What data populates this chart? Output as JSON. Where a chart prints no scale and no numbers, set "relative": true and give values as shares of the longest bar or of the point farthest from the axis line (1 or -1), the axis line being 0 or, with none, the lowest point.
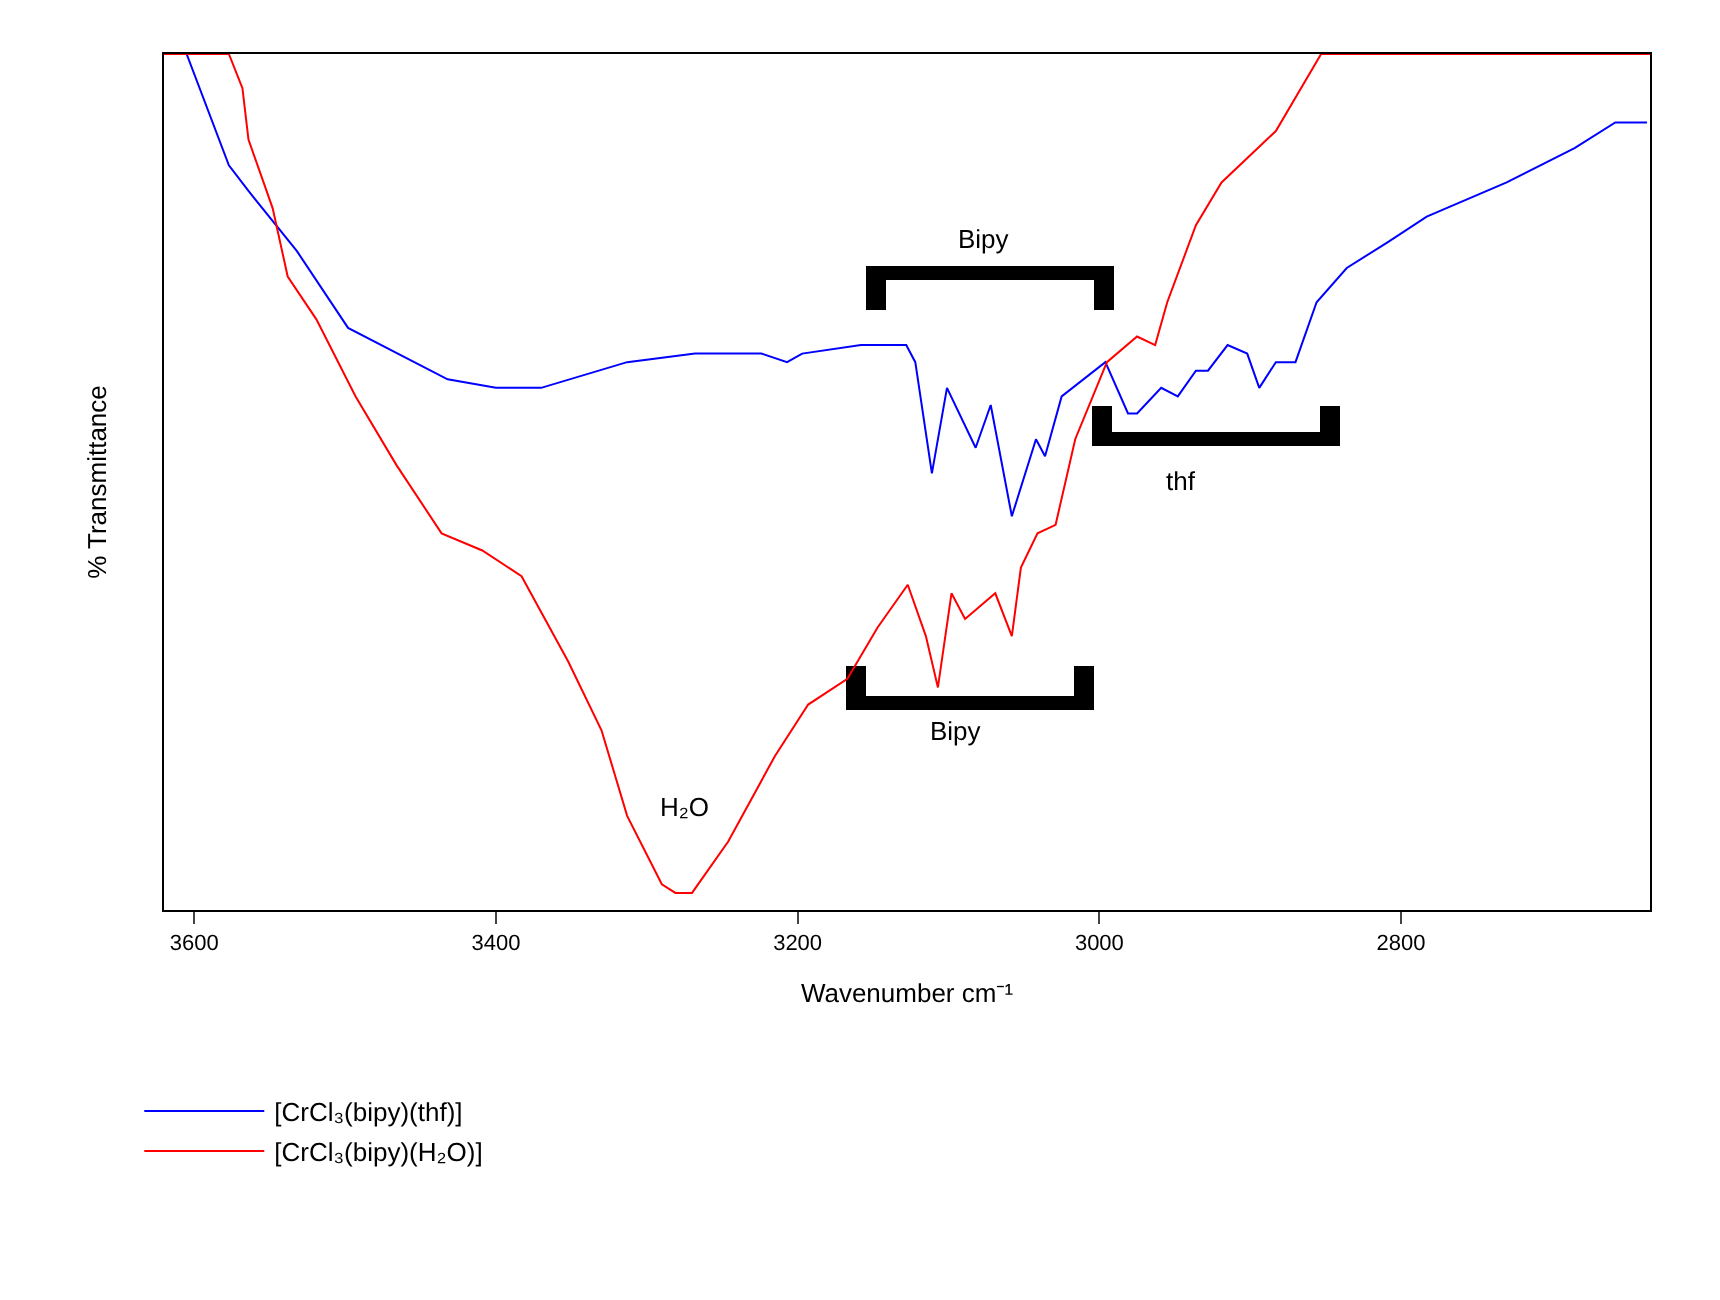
{
  "chart_data": {
    "type": "line",
    "relative": true,
    "xlabel": "Wavenumber cm⁻¹",
    "ylabel": "% Transmittance",
    "xlim": [
      3620,
      2635
    ],
    "xticks": [
      3600,
      3400,
      3200,
      3000,
      2800
    ],
    "grid": false,
    "legend": "bottom left",
    "marker": "none",
    "line_style": "solid",
    "series": [
      {
        "name": "[CrCl₃(bipy)(thf)]",
        "color": "#0000ff",
        "x": [
          3605,
          3577,
          3564,
          3532,
          3498,
          3432,
          3400,
          3370,
          3313,
          3268,
          3224,
          3207,
          3197,
          3158,
          3128,
          3122,
          3111,
          3101,
          3082,
          3072,
          3058,
          3042,
          3036,
          3025,
          2996,
          2981,
          2975,
          2959,
          2948,
          2936,
          2928,
          2915,
          2902,
          2894,
          2883,
          2870,
          2856,
          2836,
          2809,
          2783,
          2730,
          2685,
          2658,
          2637
        ],
        "values": [
          1.0,
          0.87,
          0.84,
          0.77,
          0.68,
          0.62,
          0.61,
          0.61,
          0.64,
          0.65,
          0.65,
          0.64,
          0.65,
          0.66,
          0.66,
          0.64,
          0.51,
          0.61,
          0.54,
          0.59,
          0.46,
          0.55,
          0.53,
          0.6,
          0.64,
          0.58,
          0.58,
          0.61,
          0.6,
          0.63,
          0.63,
          0.66,
          0.65,
          0.61,
          0.64,
          0.64,
          0.71,
          0.75,
          0.78,
          0.81,
          0.85,
          0.89,
          0.92,
          0.92
        ]
      },
      {
        "name": "[CrCl₃(bipy)(H₂O)]",
        "color": "#ff0000",
        "x": [
          3620,
          3577,
          3568,
          3564,
          3548,
          3538,
          3519,
          3493,
          3466,
          3436,
          3409,
          3383,
          3352,
          3330,
          3313,
          3290,
          3281,
          3270,
          3246,
          3215,
          3193,
          3167,
          3147,
          3127,
          3115,
          3107,
          3098,
          3089,
          3069,
          3058,
          3052,
          3041,
          3029,
          3016,
          2995,
          2975,
          2963,
          2955,
          2936,
          2919,
          2883,
          2853,
          2635
        ],
        "values": [
          1.0,
          1.0,
          0.96,
          0.9,
          0.82,
          0.74,
          0.69,
          0.6,
          0.52,
          0.44,
          0.42,
          0.39,
          0.29,
          0.21,
          0.11,
          0.03,
          0.02,
          0.02,
          0.08,
          0.18,
          0.24,
          0.27,
          0.33,
          0.38,
          0.32,
          0.26,
          0.37,
          0.34,
          0.37,
          0.32,
          0.4,
          0.44,
          0.45,
          0.55,
          0.64,
          0.67,
          0.66,
          0.71,
          0.8,
          0.85,
          0.91,
          1.0,
          1.0
        ]
      }
    ],
    "annotations": [
      "Bipy",
      "thf",
      "Bipy",
      "H₂O"
    ]
  }
}
